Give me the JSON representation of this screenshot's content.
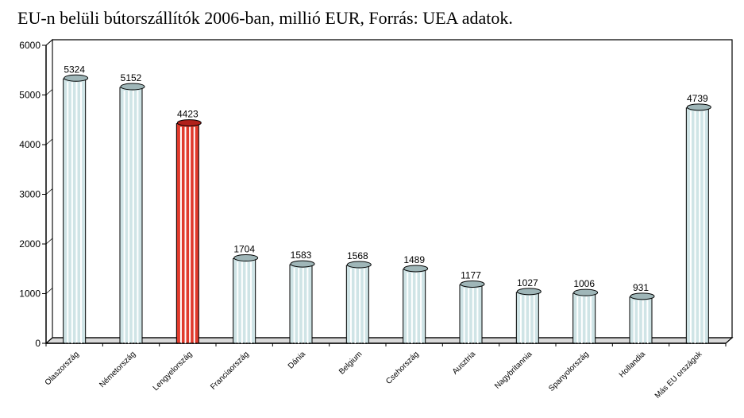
{
  "chart_data": {
    "type": "bar",
    "title": "EU-n belüli bútorszállítók 2006-ban, millió EUR, Forrás: UEA adatok.",
    "categories": [
      "Olaszország",
      "Németország",
      "Lengyelország",
      "Franciaország",
      "Dánia",
      "Belgium",
      "Csehország",
      "Ausztria",
      "Nagybritannia",
      "Spanyolország",
      "Hollandia",
      "Más EU országok"
    ],
    "values": [
      5324,
      5152,
      4423,
      1704,
      1583,
      1568,
      1489,
      1177,
      1027,
      1006,
      931,
      4739
    ],
    "value_labels": [
      "5324",
      "5152",
      "4423",
      "1704",
      "1583",
      "1568",
      "1489",
      "1177",
      "1027",
      "1006",
      "931",
      "4739"
    ],
    "highlight_index": 2,
    "ylim": [
      0,
      6000
    ],
    "yticks": [
      "0",
      "1000",
      "2000",
      "3000",
      "4000",
      "5000",
      "6000"
    ],
    "grid": false,
    "colors": {
      "bar_body": "#cfe4e6",
      "bar_top": "#9fb6b8",
      "highlight_body": "#e03a2c",
      "highlight_top": "#b0201a",
      "stripe": "#ffffff",
      "frame": "#000000"
    }
  }
}
